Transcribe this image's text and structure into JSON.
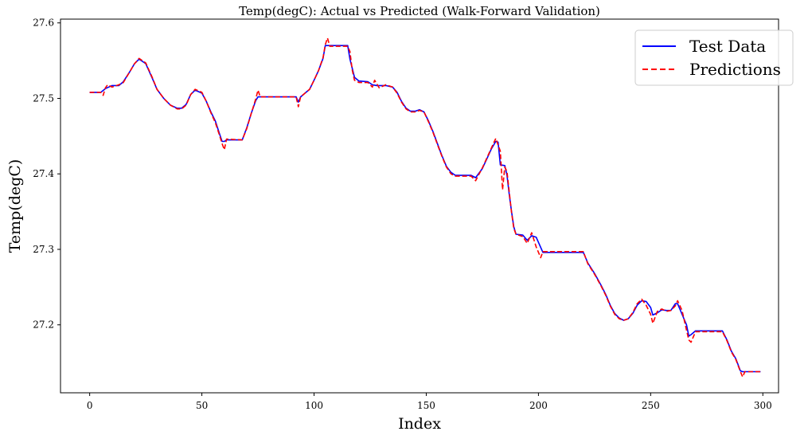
{
  "chart_data": {
    "type": "line",
    "title": "Temp(degC): Actual vs Predicted (Walk-Forward Validation)",
    "xlabel": "Index",
    "ylabel": "Temp(degC)",
    "xlim": [
      -13,
      307
    ],
    "ylim": [
      27.11,
      27.605
    ],
    "xticks": [
      0,
      50,
      100,
      150,
      200,
      250,
      300
    ],
    "yticks": [
      27.2,
      27.3,
      27.4,
      27.5,
      27.6
    ],
    "legend": {
      "position": "top-right"
    },
    "series": [
      {
        "name": "Test Data",
        "color": "#0000ff",
        "style": "solid",
        "points": [
          [
            0,
            27.508
          ],
          [
            5,
            27.508
          ],
          [
            7,
            27.513
          ],
          [
            10,
            27.517
          ],
          [
            13,
            27.517
          ],
          [
            15,
            27.522
          ],
          [
            18,
            27.536
          ],
          [
            20,
            27.546
          ],
          [
            22,
            27.552
          ],
          [
            25,
            27.546
          ],
          [
            28,
            27.526
          ],
          [
            30,
            27.512
          ],
          [
            33,
            27.5
          ],
          [
            36,
            27.491
          ],
          [
            39,
            27.487
          ],
          [
            41,
            27.487
          ],
          [
            43,
            27.492
          ],
          [
            45,
            27.505
          ],
          [
            47,
            27.511
          ],
          [
            50,
            27.507
          ],
          [
            52,
            27.496
          ],
          [
            54,
            27.482
          ],
          [
            56,
            27.47
          ],
          [
            58,
            27.452
          ],
          [
            59,
            27.443
          ],
          [
            60,
            27.443
          ],
          [
            61,
            27.445
          ],
          [
            68,
            27.445
          ],
          [
            70,
            27.461
          ],
          [
            72,
            27.48
          ],
          [
            74,
            27.497
          ],
          [
            75,
            27.502
          ],
          [
            92,
            27.502
          ],
          [
            93,
            27.495
          ],
          [
            94,
            27.502
          ],
          [
            96,
            27.507
          ],
          [
            98,
            27.512
          ],
          [
            100,
            27.524
          ],
          [
            102,
            27.537
          ],
          [
            104,
            27.553
          ],
          [
            105,
            27.57
          ],
          [
            115,
            27.57
          ],
          [
            116,
            27.552
          ],
          [
            118,
            27.528
          ],
          [
            120,
            27.523
          ],
          [
            124,
            27.522
          ],
          [
            126,
            27.518
          ],
          [
            128,
            27.517
          ],
          [
            132,
            27.517
          ],
          [
            135,
            27.515
          ],
          [
            137,
            27.508
          ],
          [
            139,
            27.496
          ],
          [
            141,
            27.487
          ],
          [
            143,
            27.483
          ],
          [
            145,
            27.483
          ],
          [
            147,
            27.485
          ],
          [
            149,
            27.482
          ],
          [
            151,
            27.47
          ],
          [
            153,
            27.456
          ],
          [
            155,
            27.44
          ],
          [
            157,
            27.424
          ],
          [
            159,
            27.41
          ],
          [
            161,
            27.402
          ],
          [
            163,
            27.398
          ],
          [
            170,
            27.398
          ],
          [
            172,
            27.395
          ],
          [
            175,
            27.407
          ],
          [
            177,
            27.42
          ],
          [
            179,
            27.433
          ],
          [
            181,
            27.443
          ],
          [
            182,
            27.442
          ],
          [
            183,
            27.412
          ],
          [
            185,
            27.411
          ],
          [
            186,
            27.398
          ],
          [
            187,
            27.372
          ],
          [
            188,
            27.35
          ],
          [
            189,
            27.33
          ],
          [
            190,
            27.32
          ],
          [
            193,
            27.319
          ],
          [
            195,
            27.312
          ],
          [
            197,
            27.318
          ],
          [
            199,
            27.316
          ],
          [
            202,
            27.296
          ],
          [
            220,
            27.296
          ],
          [
            222,
            27.282
          ],
          [
            225,
            27.268
          ],
          [
            228,
            27.252
          ],
          [
            230,
            27.24
          ],
          [
            232,
            27.226
          ],
          [
            234,
            27.215
          ],
          [
            236,
            27.209
          ],
          [
            238,
            27.206
          ],
          [
            240,
            27.208
          ],
          [
            242,
            27.215
          ],
          [
            244,
            27.226
          ],
          [
            246,
            27.232
          ],
          [
            248,
            27.231
          ],
          [
            250,
            27.223
          ],
          [
            251,
            27.213
          ],
          [
            253,
            27.216
          ],
          [
            255,
            27.22
          ],
          [
            257,
            27.219
          ],
          [
            259,
            27.219
          ],
          [
            261,
            27.228
          ],
          [
            262,
            27.228
          ],
          [
            264,
            27.214
          ],
          [
            266,
            27.2
          ],
          [
            267,
            27.185
          ],
          [
            268,
            27.187
          ],
          [
            270,
            27.192
          ],
          [
            282,
            27.192
          ],
          [
            284,
            27.18
          ],
          [
            286,
            27.165
          ],
          [
            288,
            27.155
          ],
          [
            290,
            27.139
          ],
          [
            291,
            27.138
          ],
          [
            299,
            27.138
          ]
        ]
      },
      {
        "name": "Predictions",
        "color": "#ff0000",
        "style": "dashed",
        "points": [
          [
            0,
            27.508
          ],
          [
            5,
            27.508
          ],
          [
            6,
            27.504
          ],
          [
            7,
            27.514
          ],
          [
            8,
            27.518
          ],
          [
            10,
            27.515
          ],
          [
            13,
            27.518
          ],
          [
            15,
            27.521
          ],
          [
            18,
            27.536
          ],
          [
            20,
            27.546
          ],
          [
            22,
            27.553
          ],
          [
            25,
            27.547
          ],
          [
            28,
            27.527
          ],
          [
            30,
            27.512
          ],
          [
            33,
            27.5
          ],
          [
            36,
            27.491
          ],
          [
            39,
            27.486
          ],
          [
            41,
            27.486
          ],
          [
            43,
            27.491
          ],
          [
            45,
            27.505
          ],
          [
            47,
            27.512
          ],
          [
            50,
            27.508
          ],
          [
            52,
            27.496
          ],
          [
            54,
            27.481
          ],
          [
            56,
            27.468
          ],
          [
            58,
            27.45
          ],
          [
            59,
            27.44
          ],
          [
            60,
            27.432
          ],
          [
            61,
            27.446
          ],
          [
            68,
            27.445
          ],
          [
            70,
            27.46
          ],
          [
            72,
            27.48
          ],
          [
            74,
            27.499
          ],
          [
            75,
            27.511
          ],
          [
            76,
            27.502
          ],
          [
            92,
            27.502
          ],
          [
            93,
            27.489
          ],
          [
            94,
            27.502
          ],
          [
            96,
            27.507
          ],
          [
            98,
            27.512
          ],
          [
            100,
            27.524
          ],
          [
            102,
            27.537
          ],
          [
            104,
            27.554
          ],
          [
            105,
            27.571
          ],
          [
            106,
            27.58
          ],
          [
            107,
            27.569
          ],
          [
            115,
            27.569
          ],
          [
            116,
            27.562
          ],
          [
            117,
            27.538
          ],
          [
            118,
            27.524
          ],
          [
            120,
            27.521
          ],
          [
            124,
            27.521
          ],
          [
            126,
            27.515
          ],
          [
            127,
            27.524
          ],
          [
            129,
            27.514
          ],
          [
            132,
            27.518
          ],
          [
            135,
            27.515
          ],
          [
            137,
            27.507
          ],
          [
            139,
            27.495
          ],
          [
            141,
            27.486
          ],
          [
            143,
            27.482
          ],
          [
            145,
            27.482
          ],
          [
            147,
            27.484
          ],
          [
            149,
            27.482
          ],
          [
            151,
            27.469
          ],
          [
            153,
            27.455
          ],
          [
            155,
            27.439
          ],
          [
            157,
            27.423
          ],
          [
            159,
            27.409
          ],
          [
            161,
            27.4
          ],
          [
            163,
            27.397
          ],
          [
            170,
            27.397
          ],
          [
            172,
            27.391
          ],
          [
            175,
            27.408
          ],
          [
            177,
            27.421
          ],
          [
            179,
            27.434
          ],
          [
            181,
            27.447
          ],
          [
            183,
            27.43
          ],
          [
            184,
            27.379
          ],
          [
            185,
            27.409
          ],
          [
            186,
            27.403
          ],
          [
            187,
            27.375
          ],
          [
            188,
            27.349
          ],
          [
            189,
            27.328
          ],
          [
            190,
            27.32
          ],
          [
            193,
            27.317
          ],
          [
            195,
            27.308
          ],
          [
            197,
            27.322
          ],
          [
            199,
            27.303
          ],
          [
            201,
            27.289
          ],
          [
            202,
            27.297
          ],
          [
            220,
            27.297
          ],
          [
            222,
            27.281
          ],
          [
            225,
            27.267
          ],
          [
            228,
            27.251
          ],
          [
            230,
            27.239
          ],
          [
            232,
            27.225
          ],
          [
            234,
            27.214
          ],
          [
            236,
            27.208
          ],
          [
            238,
            27.206
          ],
          [
            240,
            27.208
          ],
          [
            242,
            27.216
          ],
          [
            244,
            27.228
          ],
          [
            246,
            27.234
          ],
          [
            248,
            27.226
          ],
          [
            250,
            27.214
          ],
          [
            251,
            27.202
          ],
          [
            253,
            27.218
          ],
          [
            255,
            27.221
          ],
          [
            257,
            27.218
          ],
          [
            259,
            27.219
          ],
          [
            261,
            27.225
          ],
          [
            262,
            27.232
          ],
          [
            264,
            27.219
          ],
          [
            266,
            27.193
          ],
          [
            267,
            27.18
          ],
          [
            268,
            27.177
          ],
          [
            270,
            27.191
          ],
          [
            282,
            27.191
          ],
          [
            284,
            27.179
          ],
          [
            286,
            27.164
          ],
          [
            288,
            27.154
          ],
          [
            290,
            27.138
          ],
          [
            291,
            27.131
          ],
          [
            292,
            27.138
          ],
          [
            299,
            27.138
          ]
        ]
      }
    ]
  }
}
